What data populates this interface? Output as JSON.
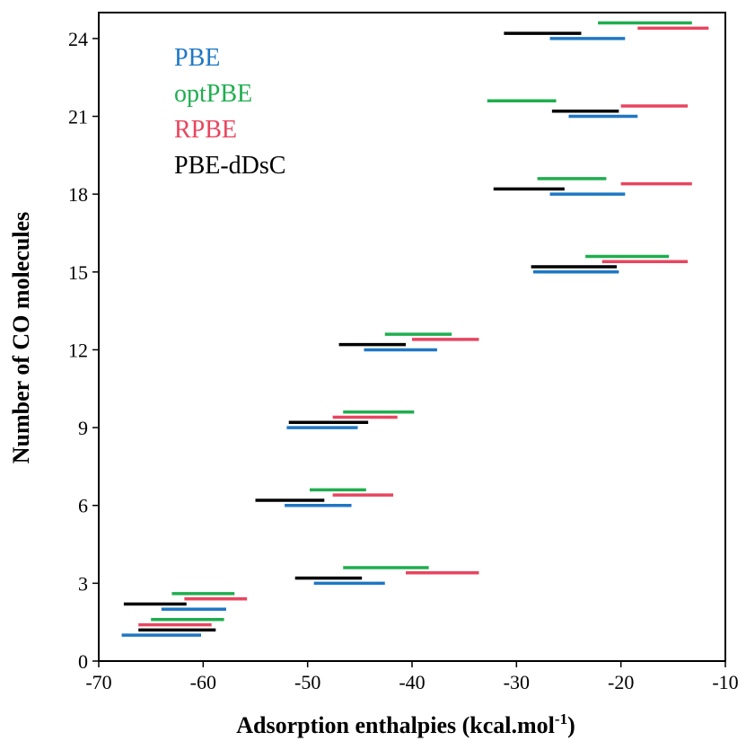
{
  "chart_data": {
    "type": "range-bar",
    "xlabel": "Adsorption enthalpies (kcal.mol",
    "xlabel_sup": "-1",
    "xlabel_end": ")",
    "ylabel": "Number of CO molecules",
    "xlim": [
      -70,
      -10
    ],
    "ylim": [
      0,
      25
    ],
    "xticks": [
      -70,
      -60,
      -50,
      -40,
      -30,
      -20,
      -10
    ],
    "yticks": [
      0,
      3,
      6,
      9,
      12,
      15,
      18,
      21,
      24
    ],
    "grid": false,
    "legend_placement": "top-left",
    "series": [
      {
        "name": "PBE",
        "color": "#1f77c4",
        "ranges": [
          {
            "n": 1,
            "y": 1.0,
            "xmin": -67.8,
            "xmax": -60.2
          },
          {
            "n": 2,
            "y": 2.0,
            "xmin": -64.0,
            "xmax": -57.8
          },
          {
            "n": 3,
            "y": 3.0,
            "xmin": -49.4,
            "xmax": -42.6
          },
          {
            "n": 6,
            "y": 6.0,
            "xmin": -52.2,
            "xmax": -45.8
          },
          {
            "n": 9,
            "y": 9.0,
            "xmin": -52.0,
            "xmax": -45.2
          },
          {
            "n": 12,
            "y": 12.0,
            "xmin": -44.6,
            "xmax": -37.6
          },
          {
            "n": 15,
            "y": 15.0,
            "xmin": -28.4,
            "xmax": -20.2
          },
          {
            "n": 18,
            "y": 18.0,
            "xmin": -26.8,
            "xmax": -19.6
          },
          {
            "n": 21,
            "y": 21.0,
            "xmin": -25.0,
            "xmax": -18.4
          },
          {
            "n": 24,
            "y": 24.0,
            "xmin": -26.8,
            "xmax": -19.6
          }
        ]
      },
      {
        "name": "optPBE",
        "color": "#1fae4f",
        "ranges": [
          {
            "n": 1,
            "y": 1.6,
            "xmin": -65.0,
            "xmax": -58.0
          },
          {
            "n": 2,
            "y": 2.6,
            "xmin": -63.0,
            "xmax": -57.0
          },
          {
            "n": 3,
            "y": 3.6,
            "xmin": -46.6,
            "xmax": -38.4
          },
          {
            "n": 6,
            "y": 6.6,
            "xmin": -49.8,
            "xmax": -44.4
          },
          {
            "n": 9,
            "y": 9.6,
            "xmin": -46.6,
            "xmax": -39.8
          },
          {
            "n": 12,
            "y": 12.6,
            "xmin": -42.6,
            "xmax": -36.2
          },
          {
            "n": 15,
            "y": 15.6,
            "xmin": -23.4,
            "xmax": -15.4
          },
          {
            "n": 18,
            "y": 18.6,
            "xmin": -28.0,
            "xmax": -21.4
          },
          {
            "n": 21,
            "y": 21.6,
            "xmin": -32.8,
            "xmax": -26.2
          },
          {
            "n": 24,
            "y": 24.6,
            "xmin": -22.2,
            "xmax": -13.2
          }
        ]
      },
      {
        "name": "RPBE",
        "color": "#e8455f",
        "ranges": [
          {
            "n": 1,
            "y": 1.4,
            "xmin": -66.2,
            "xmax": -59.2
          },
          {
            "n": 2,
            "y": 2.4,
            "xmin": -61.8,
            "xmax": -55.8
          },
          {
            "n": 3,
            "y": 3.4,
            "xmin": -40.6,
            "xmax": -33.6
          },
          {
            "n": 6,
            "y": 6.4,
            "xmin": -47.6,
            "xmax": -41.8
          },
          {
            "n": 9,
            "y": 9.4,
            "xmin": -47.6,
            "xmax": -41.4
          },
          {
            "n": 12,
            "y": 12.4,
            "xmin": -40.0,
            "xmax": -33.6
          },
          {
            "n": 15,
            "y": 15.4,
            "xmin": -21.8,
            "xmax": -13.6
          },
          {
            "n": 18,
            "y": 18.4,
            "xmin": -20.0,
            "xmax": -13.2
          },
          {
            "n": 21,
            "y": 21.4,
            "xmin": -20.0,
            "xmax": -13.6
          },
          {
            "n": 24,
            "y": 24.4,
            "xmin": -18.4,
            "xmax": -11.6
          }
        ]
      },
      {
        "name": "PBE-dDsC",
        "color": "#000000",
        "ranges": [
          {
            "n": 1,
            "y": 1.2,
            "xmin": -66.2,
            "xmax": -58.8
          },
          {
            "n": 2,
            "y": 2.2,
            "xmin": -67.6,
            "xmax": -61.6
          },
          {
            "n": 3,
            "y": 3.2,
            "xmin": -51.2,
            "xmax": -44.8
          },
          {
            "n": 6,
            "y": 6.2,
            "xmin": -55.0,
            "xmax": -48.4
          },
          {
            "n": 9,
            "y": 9.2,
            "xmin": -51.8,
            "xmax": -44.2
          },
          {
            "n": 12,
            "y": 12.2,
            "xmin": -47.0,
            "xmax": -40.6
          },
          {
            "n": 15,
            "y": 15.2,
            "xmin": -28.6,
            "xmax": -20.4
          },
          {
            "n": 18,
            "y": 18.2,
            "xmin": -32.2,
            "xmax": -25.4
          },
          {
            "n": 21,
            "y": 21.2,
            "xmin": -26.6,
            "xmax": -20.2
          },
          {
            "n": 24,
            "y": 24.2,
            "xmin": -31.2,
            "xmax": -23.8
          }
        ]
      }
    ]
  }
}
